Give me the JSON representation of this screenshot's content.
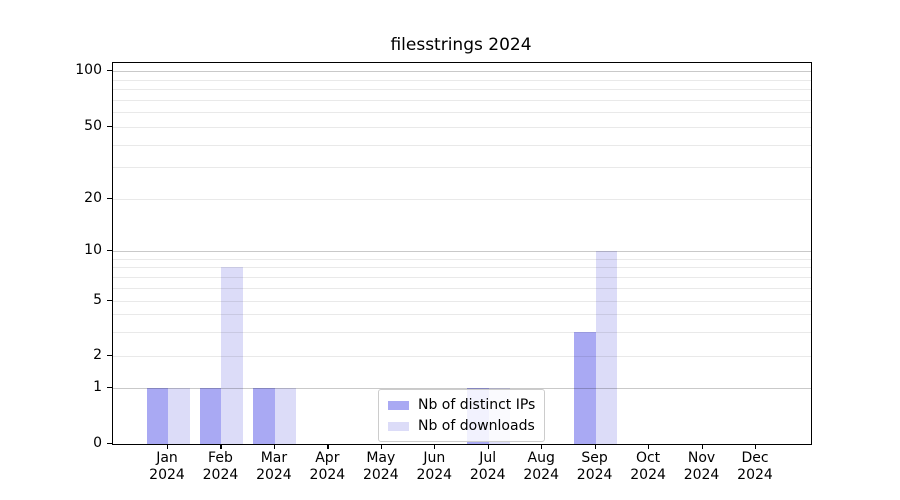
{
  "title": "filesstrings 2024",
  "colors": {
    "distinct_ips": "#a9a9f3",
    "downloads": "#dcdcf8",
    "axis": "#000000"
  },
  "legend": {
    "items": [
      {
        "label": "Nb of distinct IPs",
        "color_key": "distinct_ips"
      },
      {
        "label": "Nb of downloads",
        "color_key": "downloads"
      }
    ]
  },
  "chart_data": {
    "type": "bar",
    "title": "filesstrings 2024",
    "categories": [
      "Jan 2024",
      "Feb 2024",
      "Mar 2024",
      "Apr 2024",
      "May 2024",
      "Jun 2024",
      "Jul 2024",
      "Aug 2024",
      "Sep 2024",
      "Oct 2024",
      "Nov 2024",
      "Dec 2024"
    ],
    "series": [
      {
        "name": "Nb of distinct IPs",
        "color": "#a9a9f3",
        "values": [
          1,
          1,
          1,
          0,
          0,
          0,
          1,
          0,
          3,
          0,
          0,
          0
        ]
      },
      {
        "name": "Nb of downloads",
        "color": "#dcdcf8",
        "values": [
          1,
          8,
          1,
          0,
          0,
          0,
          1,
          0,
          10,
          0,
          0,
          0
        ]
      }
    ],
    "xlabel": "",
    "ylabel": "",
    "yticks": [
      0,
      1,
      2,
      5,
      10,
      20,
      50,
      100
    ],
    "ylim": [
      0,
      110
    ],
    "yscale": "symlog",
    "grid": true,
    "legend_position": "lower center"
  }
}
